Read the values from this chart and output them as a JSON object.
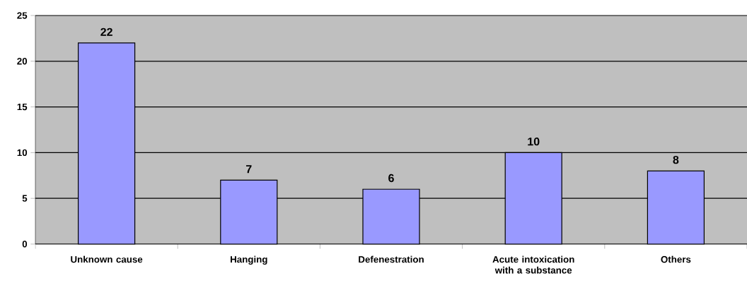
{
  "chart_data": {
    "type": "bar",
    "categories": [
      "Unknown cause",
      "Hanging",
      "Defenestration",
      "Acute intoxication with a substance",
      "Others"
    ],
    "values": [
      22,
      7,
      6,
      10,
      8
    ],
    "color": "#9999ff",
    "ylim": [
      0,
      25
    ],
    "yticks": [
      0,
      5,
      10,
      15,
      20,
      25
    ],
    "grid": "y",
    "data_labels": true
  }
}
